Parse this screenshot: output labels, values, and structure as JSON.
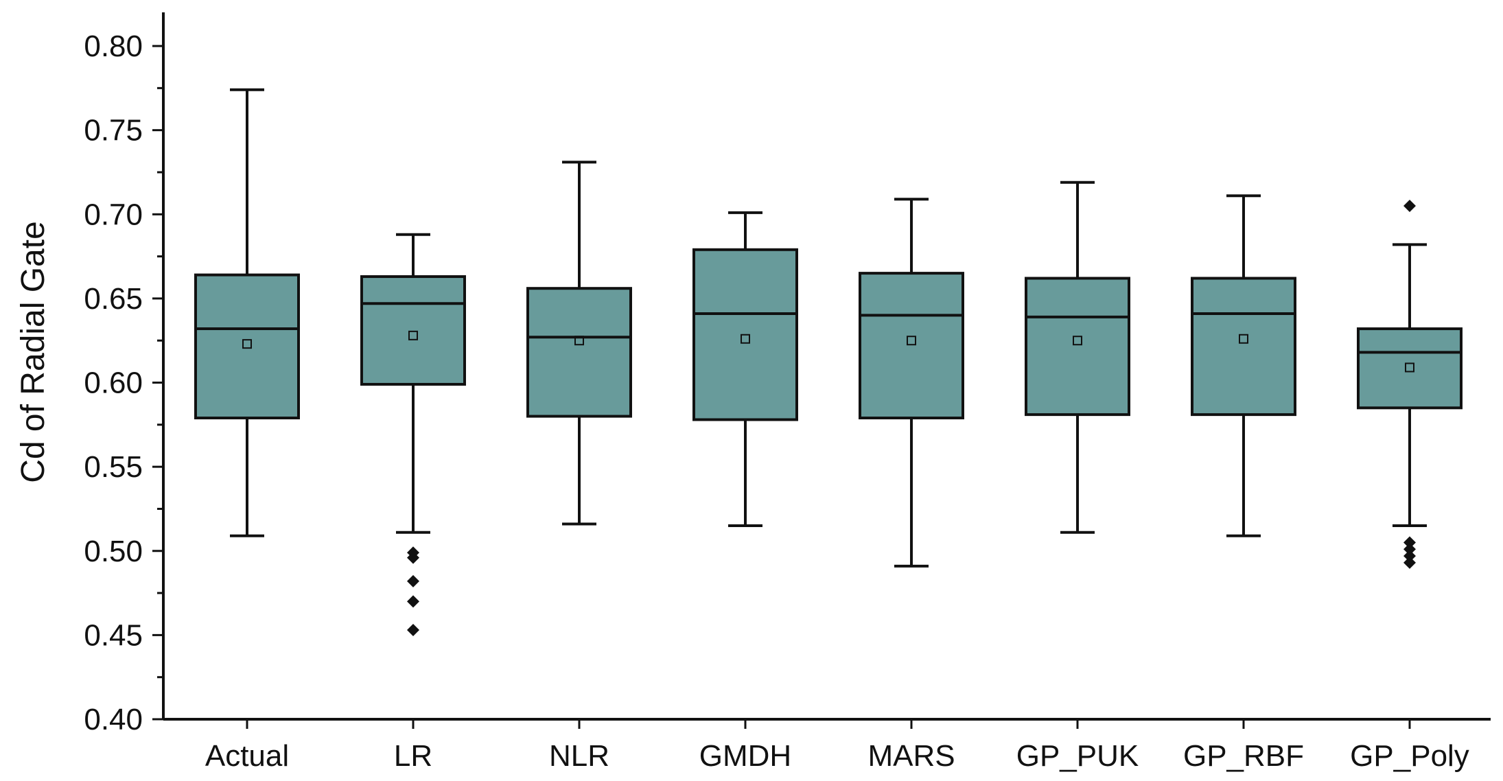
{
  "chart_data": {
    "type": "box",
    "ylabel": "Cd of Radial Gate",
    "xlabel": "",
    "ylim": [
      0.4,
      0.82
    ],
    "yticks": [
      "0.40",
      "0.45",
      "0.50",
      "0.55",
      "0.60",
      "0.65",
      "0.70",
      "0.75",
      "0.80"
    ],
    "box_color": "#689b9b",
    "categories": [
      "Actual",
      "LR",
      "NLR",
      "GMDH",
      "MARS",
      "GP_PUK",
      "GP_RBF",
      "GP_Poly"
    ],
    "boxes": [
      {
        "label": "Actual",
        "min": 0.509,
        "q1": 0.579,
        "median": 0.632,
        "q3": 0.664,
        "max": 0.774,
        "mean": 0.623,
        "outliers": []
      },
      {
        "label": "LR",
        "min": 0.511,
        "q1": 0.599,
        "median": 0.647,
        "q3": 0.663,
        "max": 0.688,
        "mean": 0.628,
        "outliers": [
          0.499,
          0.496,
          0.482,
          0.47,
          0.453
        ]
      },
      {
        "label": "NLR",
        "min": 0.516,
        "q1": 0.58,
        "median": 0.627,
        "q3": 0.656,
        "max": 0.731,
        "mean": 0.625,
        "outliers": []
      },
      {
        "label": "GMDH",
        "min": 0.515,
        "q1": 0.578,
        "median": 0.641,
        "q3": 0.679,
        "max": 0.701,
        "mean": 0.626,
        "outliers": []
      },
      {
        "label": "MARS",
        "min": 0.491,
        "q1": 0.579,
        "median": 0.64,
        "q3": 0.665,
        "max": 0.709,
        "mean": 0.625,
        "outliers": []
      },
      {
        "label": "GP_PUK",
        "min": 0.511,
        "q1": 0.581,
        "median": 0.639,
        "q3": 0.662,
        "max": 0.719,
        "mean": 0.625,
        "outliers": []
      },
      {
        "label": "GP_RBF",
        "min": 0.509,
        "q1": 0.581,
        "median": 0.641,
        "q3": 0.662,
        "max": 0.711,
        "mean": 0.626,
        "outliers": []
      },
      {
        "label": "GP_Poly",
        "min": 0.515,
        "q1": 0.585,
        "median": 0.618,
        "q3": 0.632,
        "max": 0.682,
        "mean": 0.609,
        "outliers": [
          0.705,
          0.505,
          0.501,
          0.497,
          0.493
        ]
      }
    ]
  }
}
